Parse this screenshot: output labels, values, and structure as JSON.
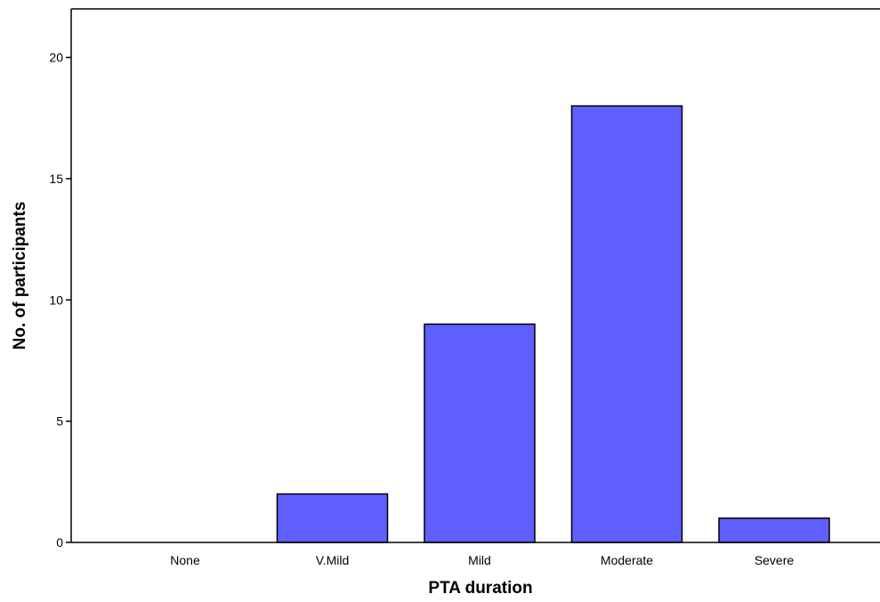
{
  "chart_data": {
    "type": "bar",
    "title": "",
    "xlabel": "PTA duration",
    "ylabel": "No. of participants",
    "categories": [
      "None",
      "V.Mild",
      "Mild",
      "Moderate",
      "Severe"
    ],
    "values": [
      0,
      2,
      9,
      18,
      1
    ],
    "ylim": [
      0,
      22
    ],
    "yticks": [
      0,
      5,
      10,
      15,
      20
    ],
    "grid": false,
    "legend": "none",
    "colors": {
      "bar_fill": "#5f5fff",
      "bar_stroke": "#000000",
      "axis": "#000000",
      "background": "#ffffff"
    }
  }
}
